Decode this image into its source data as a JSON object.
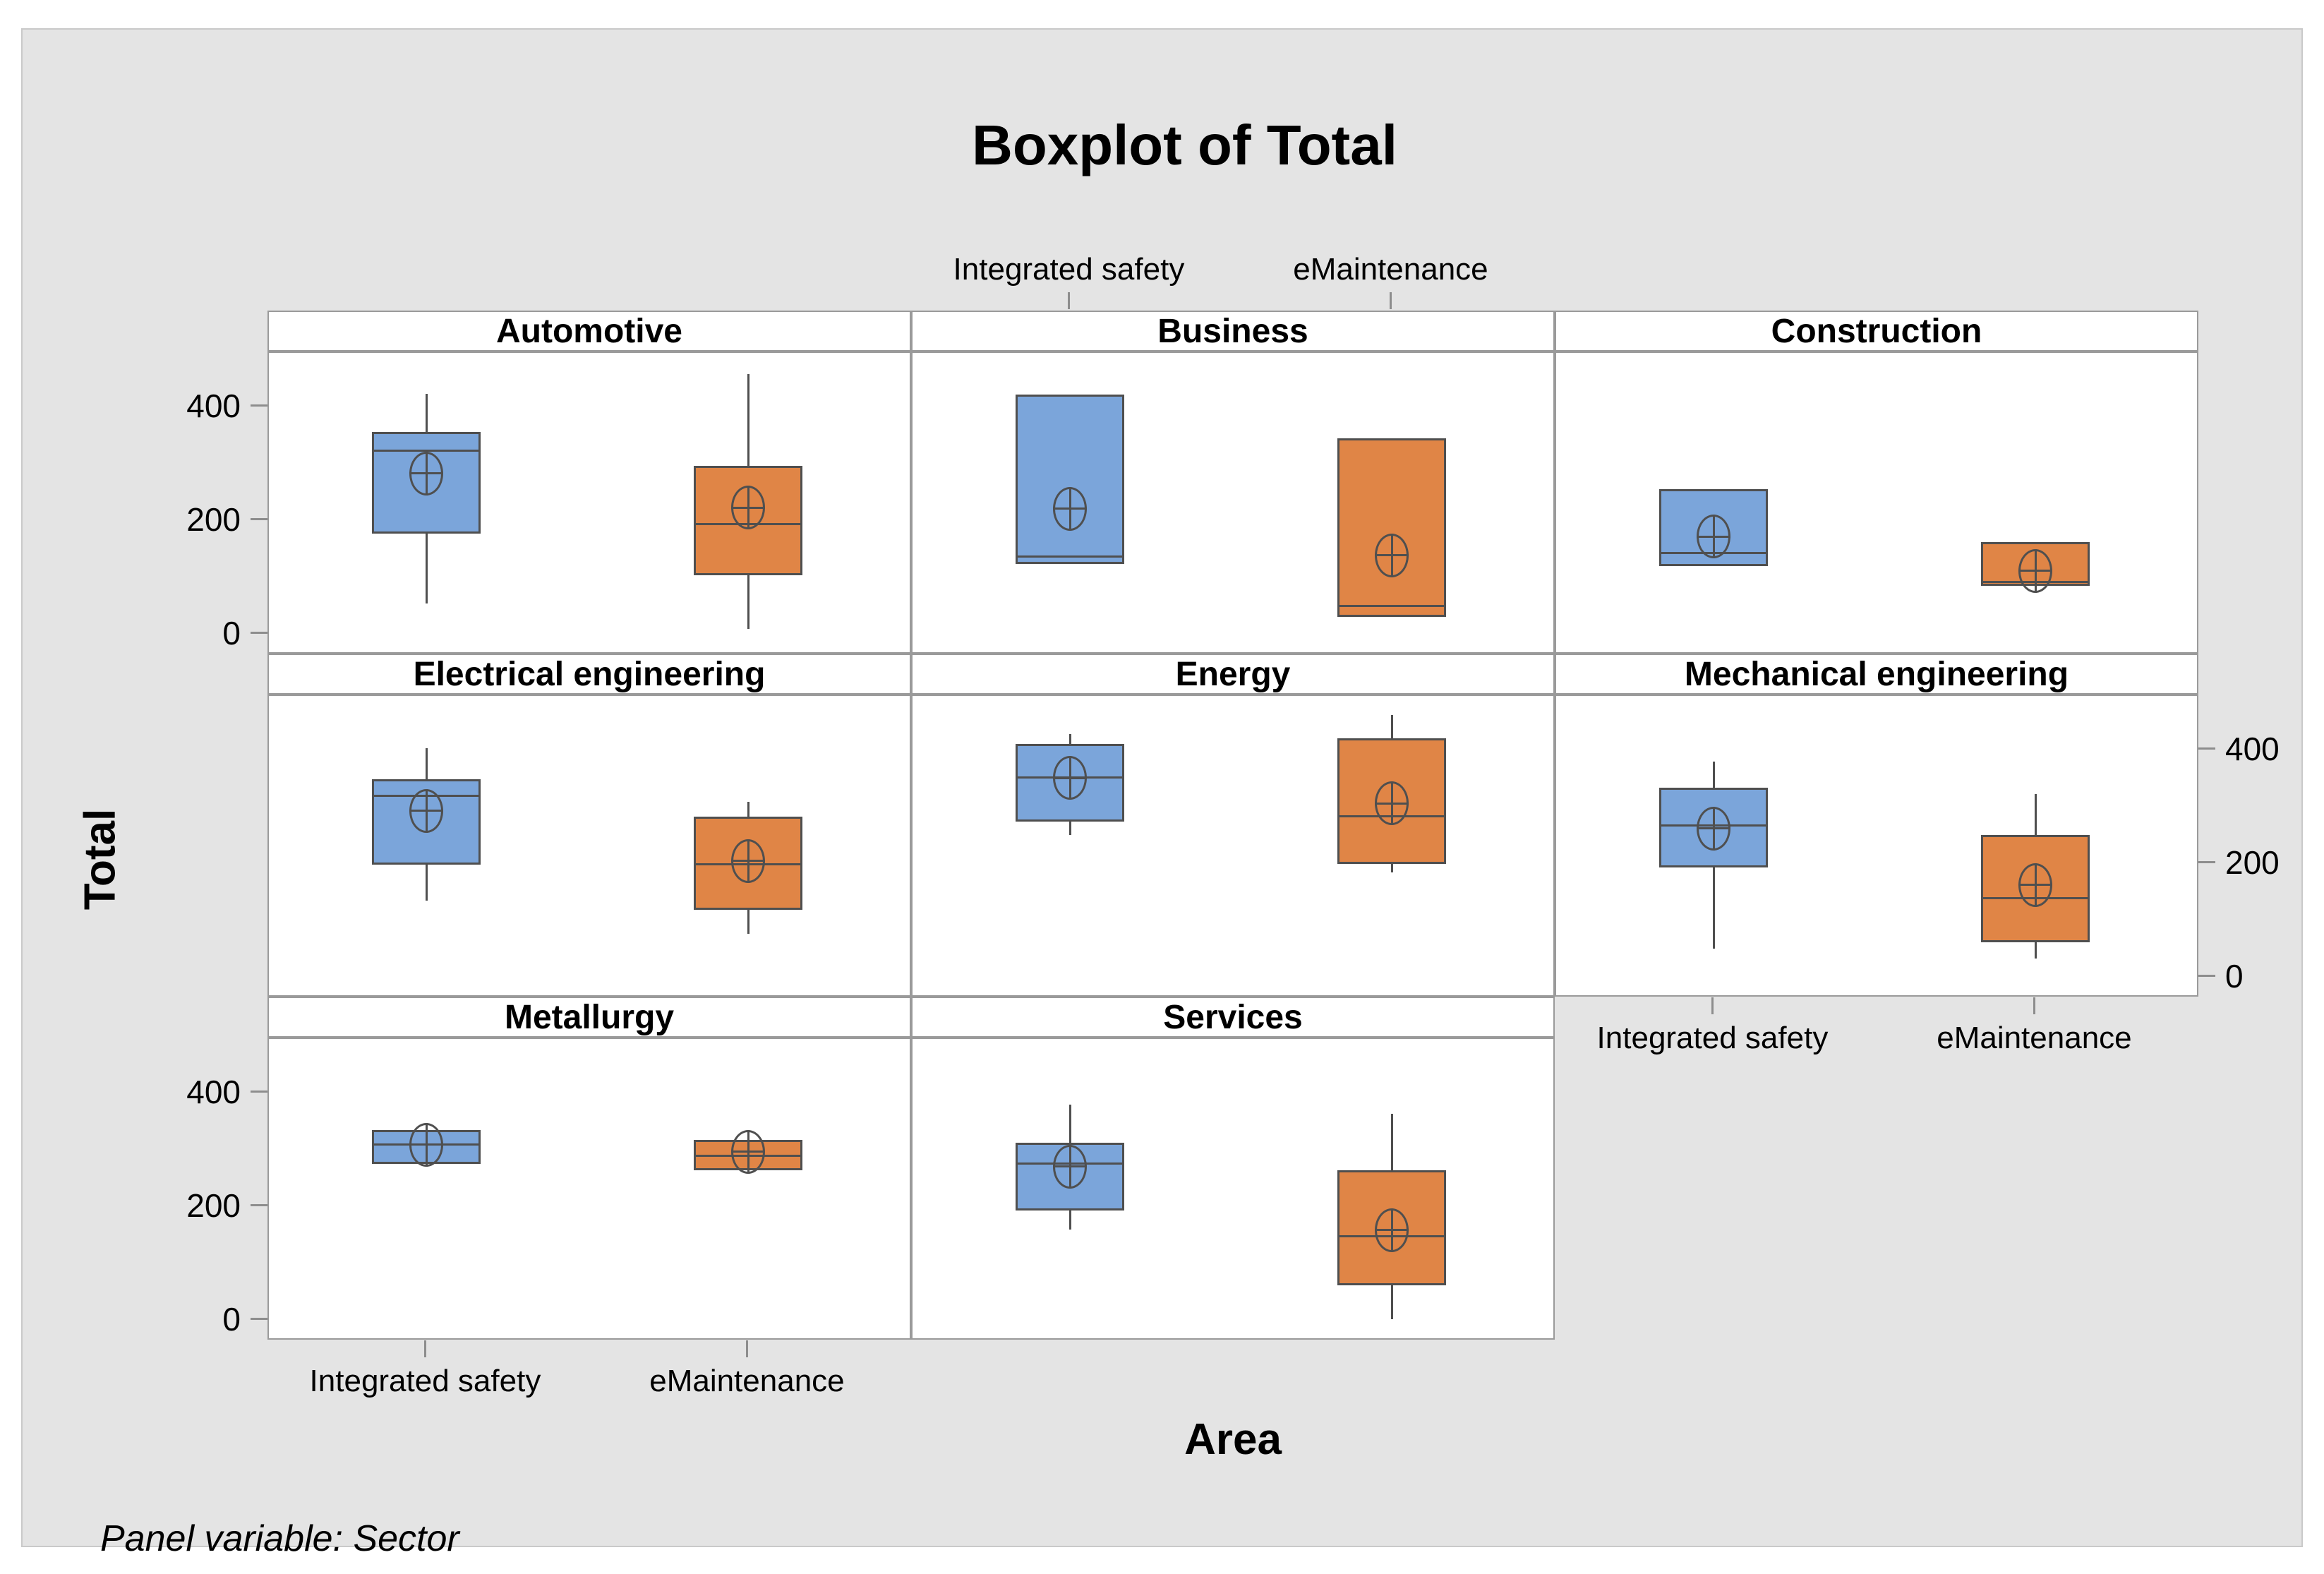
{
  "title": "Boxplot of Total",
  "y_axis_title": "Total",
  "x_axis_title": "Area",
  "footer_note": "Panel variable: Sector",
  "colors": {
    "integrated_safety_fill": "#7BA5DA",
    "emaintenance_fill": "#E08546",
    "box_outline": "#4F4F4F",
    "panel_border": "#9A9A9A",
    "canvas_background": "#E4E4E4",
    "panel_background": "#FFFFFF",
    "text": "#000000"
  },
  "chart_data": {
    "type": "boxplot",
    "title": "Boxplot of Total",
    "xlabel": "Area",
    "ylabel": "Total",
    "panel_variable": "Sector",
    "categories": [
      "Integrated safety",
      "eMaintenance"
    ],
    "y_ticks": [
      0,
      200,
      400
    ],
    "ylim": [
      -36,
      495
    ],
    "grid": "off",
    "panels": [
      {
        "sector": "Automotive",
        "row": 0,
        "col": 0,
        "boxes": [
          {
            "category": "Integrated safety",
            "whislo": 54,
            "q1": 177,
            "med": 323,
            "mean": 283,
            "q3": 356,
            "whishi": 423
          },
          {
            "category": "eMaintenance",
            "whislo": 10,
            "q1": 104,
            "med": 194,
            "mean": 223,
            "q3": 296,
            "whishi": 458
          }
        ]
      },
      {
        "sector": "Business",
        "row": 0,
        "col": 1,
        "boxes": [
          {
            "category": "Integrated safety",
            "whislo": 124,
            "q1": 124,
            "med": 137,
            "mean": 221,
            "q3": 422,
            "whishi": 422
          },
          {
            "category": "eMaintenance",
            "whislo": 31,
            "q1": 31,
            "med": 50,
            "mean": 139,
            "q3": 345,
            "whishi": 345
          }
        ]
      },
      {
        "sector": "Construction",
        "row": 0,
        "col": 2,
        "boxes": [
          {
            "category": "Integrated safety",
            "whislo": 120,
            "q1": 120,
            "med": 143,
            "mean": 172,
            "q3": 255,
            "whishi": 255
          },
          {
            "category": "eMaintenance",
            "whislo": 85,
            "q1": 85,
            "med": 93,
            "mean": 112,
            "q3": 163,
            "whishi": 163
          }
        ]
      },
      {
        "sector": "Electrical engineering",
        "row": 1,
        "col": 0,
        "boxes": [
          {
            "category": "Integrated safety",
            "whislo": 135,
            "q1": 199,
            "med": 319,
            "mean": 293,
            "q3": 348,
            "whishi": 403
          },
          {
            "category": "eMaintenance",
            "whislo": 77,
            "q1": 119,
            "med": 199,
            "mean": 205,
            "q3": 283,
            "whishi": 309
          }
        ]
      },
      {
        "sector": "Energy",
        "row": 1,
        "col": 1,
        "boxes": [
          {
            "category": "Integrated safety",
            "whislo": 251,
            "q1": 274,
            "med": 352,
            "mean": 351,
            "q3": 411,
            "whishi": 428
          },
          {
            "category": "eMaintenance",
            "whislo": 185,
            "q1": 200,
            "med": 284,
            "mean": 306,
            "q3": 421,
            "whishi": 462
          }
        ]
      },
      {
        "sector": "Mechanical engineering",
        "row": 1,
        "col": 2,
        "boxes": [
          {
            "category": "Integrated safety",
            "whislo": 51,
            "q1": 194,
            "med": 267,
            "mean": 262,
            "q3": 334,
            "whishi": 379
          },
          {
            "category": "eMaintenance",
            "whislo": 33,
            "q1": 62,
            "med": 140,
            "mean": 163,
            "q3": 251,
            "whishi": 323
          }
        ]
      },
      {
        "sector": "Metallurgy",
        "row": 2,
        "col": 0,
        "boxes": [
          {
            "category": "Integrated safety",
            "whislo": 275,
            "q1": 275,
            "med": 310,
            "mean": 309,
            "q3": 335,
            "whishi": 335
          },
          {
            "category": "eMaintenance",
            "whislo": 264,
            "q1": 264,
            "med": 290,
            "mean": 297,
            "q3": 318,
            "whishi": 318
          }
        ]
      },
      {
        "sector": "Services",
        "row": 2,
        "col": 1,
        "boxes": [
          {
            "category": "Integrated safety",
            "whislo": 160,
            "q1": 193,
            "med": 276,
            "mean": 271,
            "q3": 313,
            "whishi": 379
          },
          {
            "category": "eMaintenance",
            "whislo": 2,
            "q1": 62,
            "med": 148,
            "mean": 159,
            "q3": 264,
            "whishi": 364
          }
        ]
      }
    ],
    "legend_position": "none",
    "axis_label_placement": {
      "y_tick_labels": [
        {
          "row": 0,
          "col": 0,
          "side": "left"
        },
        {
          "row": 2,
          "col": 0,
          "side": "left"
        },
        {
          "row": 1,
          "col": 2,
          "side": "right"
        }
      ],
      "x_category_labels": [
        {
          "col": 1,
          "position": "top"
        },
        {
          "col": 0,
          "position": "bottom"
        },
        {
          "col": 2,
          "position": "below-row-1"
        }
      ]
    }
  }
}
